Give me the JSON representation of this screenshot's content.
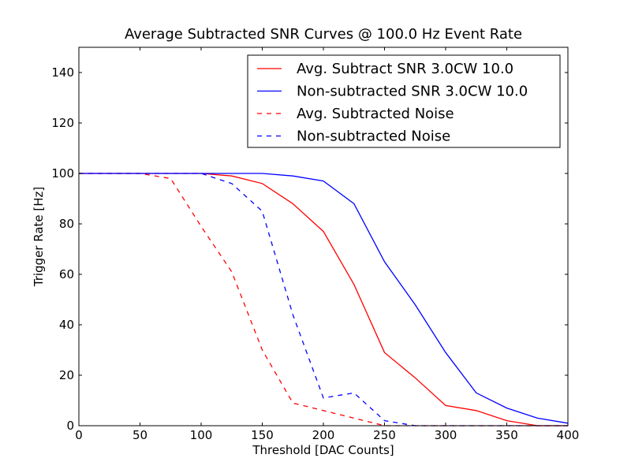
{
  "chart_data": {
    "type": "line",
    "title": "Average Subtracted SNR Curves @ 100.0 Hz Event Rate",
    "xlabel": "Threshold [DAC Counts]",
    "ylabel": "Trigger Rate [Hz]",
    "xlim": [
      0,
      400
    ],
    "ylim": [
      0,
      150
    ],
    "xticks": [
      0,
      50,
      100,
      150,
      200,
      250,
      300,
      350,
      400
    ],
    "yticks": [
      0,
      20,
      40,
      60,
      80,
      100,
      120,
      140
    ],
    "grid": false,
    "legend_position": "top-right",
    "series": [
      {
        "name": "Avg. Subtract SNR 3.0CW 10.0",
        "color": "#ff0000",
        "dash": "solid",
        "x": [
          0,
          25,
          50,
          75,
          100,
          125,
          150,
          175,
          200,
          225,
          250,
          275,
          300,
          325,
          350,
          375,
          400
        ],
        "y": [
          100,
          100,
          100,
          100,
          100,
          99,
          96,
          88,
          77,
          56,
          29,
          19,
          8,
          6,
          2,
          0,
          0
        ]
      },
      {
        "name": "Non-subtracted SNR 3.0CW 10.0",
        "color": "#0000ff",
        "dash": "solid",
        "x": [
          0,
          25,
          50,
          75,
          100,
          125,
          150,
          175,
          200,
          225,
          250,
          275,
          300,
          325,
          350,
          375,
          400
        ],
        "y": [
          100,
          100,
          100,
          100,
          100,
          100,
          100,
          99,
          97,
          88,
          65,
          48,
          29,
          13,
          7,
          3,
          1
        ]
      },
      {
        "name": "Avg. Subtracted Noise",
        "color": "#ff0000",
        "dash": "dashed",
        "x": [
          0,
          25,
          50,
          75,
          100,
          125,
          150,
          175,
          200,
          225,
          250,
          275,
          300,
          325,
          350,
          375,
          400
        ],
        "y": [
          100,
          100,
          100,
          98,
          79,
          61,
          30,
          9,
          6,
          3,
          0,
          0,
          0,
          0,
          0,
          0,
          0
        ]
      },
      {
        "name": "Non-subtracted Noise",
        "color": "#0000ff",
        "dash": "dashed",
        "x": [
          0,
          25,
          50,
          75,
          100,
          125,
          150,
          175,
          200,
          225,
          250,
          275,
          300,
          325,
          350,
          375,
          400
        ],
        "y": [
          100,
          100,
          100,
          100,
          100,
          96,
          85,
          44,
          11,
          13,
          2,
          0,
          0,
          0,
          0,
          0,
          0
        ]
      }
    ]
  }
}
